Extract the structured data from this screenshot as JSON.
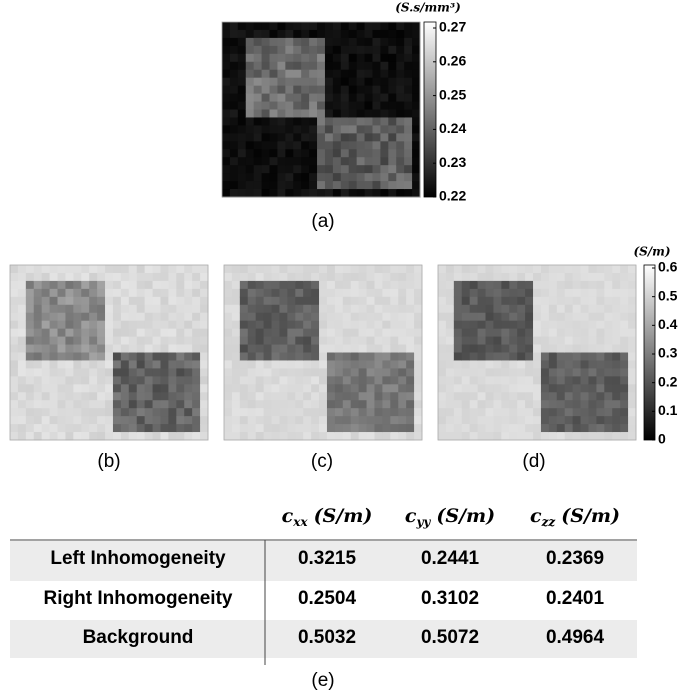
{
  "panel_a": {
    "label": "(a)",
    "unit": "(S.s/mm³)",
    "ticks": [
      0.27,
      0.26,
      0.25,
      0.24,
      0.23,
      0.22
    ]
  },
  "panels_bcd": {
    "labels": [
      "(b)",
      "(c)",
      "(d)"
    ],
    "unit": "(S/m)",
    "ticks": [
      0.6,
      0.5,
      0.4,
      0.3,
      0.2,
      0.1,
      0
    ]
  },
  "table": {
    "label": "(e)",
    "header": [
      {
        "symbol": "c",
        "subscript": "xx",
        "unit": "(S/m)"
      },
      {
        "symbol": "c",
        "subscript": "yy",
        "unit": "(S/m)"
      },
      {
        "symbol": "c",
        "subscript": "zz",
        "unit": "(S/m)"
      }
    ],
    "rows": [
      [
        "Left Inhomogeneity",
        0.3215,
        0.2441,
        0.2369
      ],
      [
        "Right Inhomogeneity",
        0.2504,
        0.3102,
        0.2401
      ],
      [
        "Background",
        0.5032,
        0.5072,
        0.4964
      ]
    ]
  }
}
